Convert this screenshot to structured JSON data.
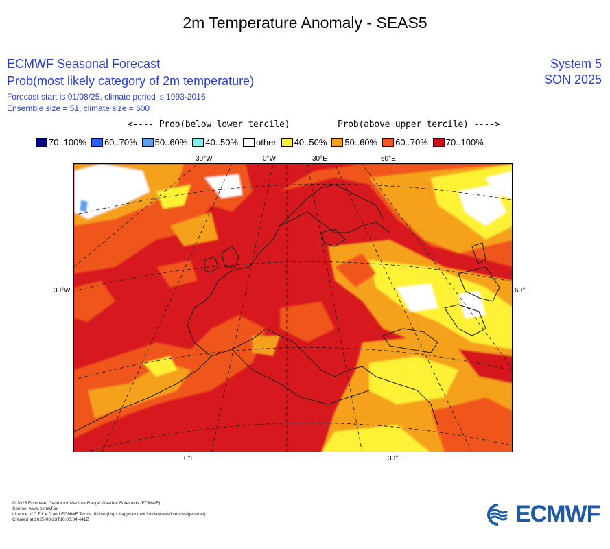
{
  "page_title": "2m Temperature Anomaly - SEAS5",
  "header": {
    "title": "ECMWF Seasonal Forecast",
    "subtitle": "Prob(most likely category of 2m temperature)",
    "forecast_start": "Forecast start is 01/08/25, climate period is 1993-2016",
    "ensemble": "Ensemble size = 51, climate size = 600",
    "system": "System 5",
    "season": "SON 2025"
  },
  "legend": {
    "below_label": "<---- Prob(below lower tercile)",
    "above_label": "Prob(above upper tercile) ---->",
    "items": [
      {
        "label": "70..100%",
        "color": "#00008b"
      },
      {
        "label": "60..70%",
        "color": "#2a5ff0"
      },
      {
        "label": "50..60%",
        "color": "#5aa0ea"
      },
      {
        "label": "40..50%",
        "color": "#7ff0f0"
      },
      {
        "label": "other",
        "color": "#ffffff"
      },
      {
        "label": "40..50%",
        "color": "#fff135"
      },
      {
        "label": "50..60%",
        "color": "#f6a11c"
      },
      {
        "label": "60..70%",
        "color": "#f0561e"
      },
      {
        "label": "70..100%",
        "color": "#c8101e"
      }
    ]
  },
  "map": {
    "axis_labels": {
      "top": [
        "30°W",
        "0°W",
        "30°E",
        "60°E"
      ],
      "left": "30°W",
      "right": "60°E",
      "bottom": [
        "0°E",
        "30°E"
      ]
    }
  },
  "footer": {
    "lines": [
      "© 2025 European Centre for Medium-Range Weather Forecasts (ECMWF)",
      "Source: www.ecmwf.int",
      "Licence: CC BY 4.0 and ECMWF Terms of Use (https://apps.ecmwf.int/datasets/licences/general/)",
      "Created at 2025-08-23T10:00:34.441Z"
    ]
  },
  "logo": {
    "text": "ECMWF",
    "icon": "ecmwf-logo-icon"
  }
}
